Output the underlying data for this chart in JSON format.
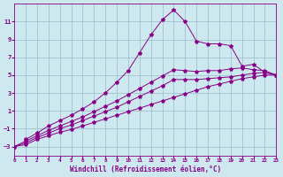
{
  "xlabel": "Windchill (Refroidissement éolien,°C)",
  "bg_color": "#cde8ee",
  "line_color": "#880088",
  "grid_color": "#99bbcc",
  "xlim": [
    0,
    23
  ],
  "ylim": [
    -4,
    13
  ],
  "xticks": [
    0,
    1,
    2,
    3,
    4,
    5,
    6,
    7,
    8,
    9,
    10,
    11,
    12,
    13,
    14,
    15,
    16,
    17,
    18,
    19,
    20,
    21,
    22,
    23
  ],
  "yticks": [
    -3,
    -1,
    1,
    3,
    5,
    7,
    9,
    11
  ],
  "series": [
    {
      "x": [
        0,
        1,
        2,
        3,
        4,
        5,
        6,
        7,
        8,
        9,
        10,
        11,
        12,
        13,
        14,
        15,
        16,
        17,
        18,
        19,
        20,
        21,
        22,
        23
      ],
      "y": [
        -3,
        -2.8,
        -2.2,
        -1.8,
        -1.4,
        -1.1,
        -0.7,
        -0.3,
        0.1,
        0.5,
        0.9,
        1.3,
        1.7,
        2.1,
        2.5,
        2.9,
        3.3,
        3.7,
        4.0,
        4.3,
        4.6,
        4.8,
        5.0,
        5.0
      ]
    },
    {
      "x": [
        0,
        1,
        2,
        3,
        4,
        5,
        6,
        7,
        8,
        9,
        10,
        11,
        12,
        13,
        14,
        15,
        16,
        17,
        18,
        19,
        20,
        21,
        22,
        23
      ],
      "y": [
        -3,
        -2.6,
        -2.0,
        -1.5,
        -1.0,
        -0.6,
        -0.1,
        0.4,
        0.9,
        1.4,
        2.0,
        2.6,
        3.2,
        3.8,
        4.5,
        4.5,
        4.5,
        4.6,
        4.7,
        4.8,
        5.0,
        5.2,
        5.3,
        5.0
      ]
    },
    {
      "x": [
        0,
        1,
        2,
        3,
        4,
        5,
        6,
        7,
        8,
        9,
        10,
        11,
        12,
        13,
        14,
        15,
        16,
        17,
        18,
        19,
        20,
        21,
        22,
        23
      ],
      "y": [
        -3,
        -2.4,
        -1.8,
        -1.2,
        -0.7,
        -0.2,
        0.3,
        0.9,
        1.5,
        2.1,
        2.8,
        3.5,
        4.2,
        4.9,
        5.6,
        5.5,
        5.4,
        5.5,
        5.5,
        5.7,
        5.8,
        5.6,
        5.5,
        5.0
      ]
    },
    {
      "x": [
        1,
        2,
        3,
        4,
        5,
        6,
        7,
        8,
        9,
        10,
        11,
        12,
        13,
        14,
        15,
        16,
        17,
        18,
        19,
        20,
        21,
        22,
        23
      ],
      "y": [
        -2.2,
        -1.5,
        -0.7,
        -0.1,
        0.5,
        1.2,
        2.0,
        3.0,
        4.2,
        5.5,
        7.5,
        9.5,
        11.2,
        12.3,
        11.0,
        8.8,
        8.5,
        8.5,
        8.3,
        6.0,
        6.2,
        5.3,
        5.0
      ]
    }
  ]
}
